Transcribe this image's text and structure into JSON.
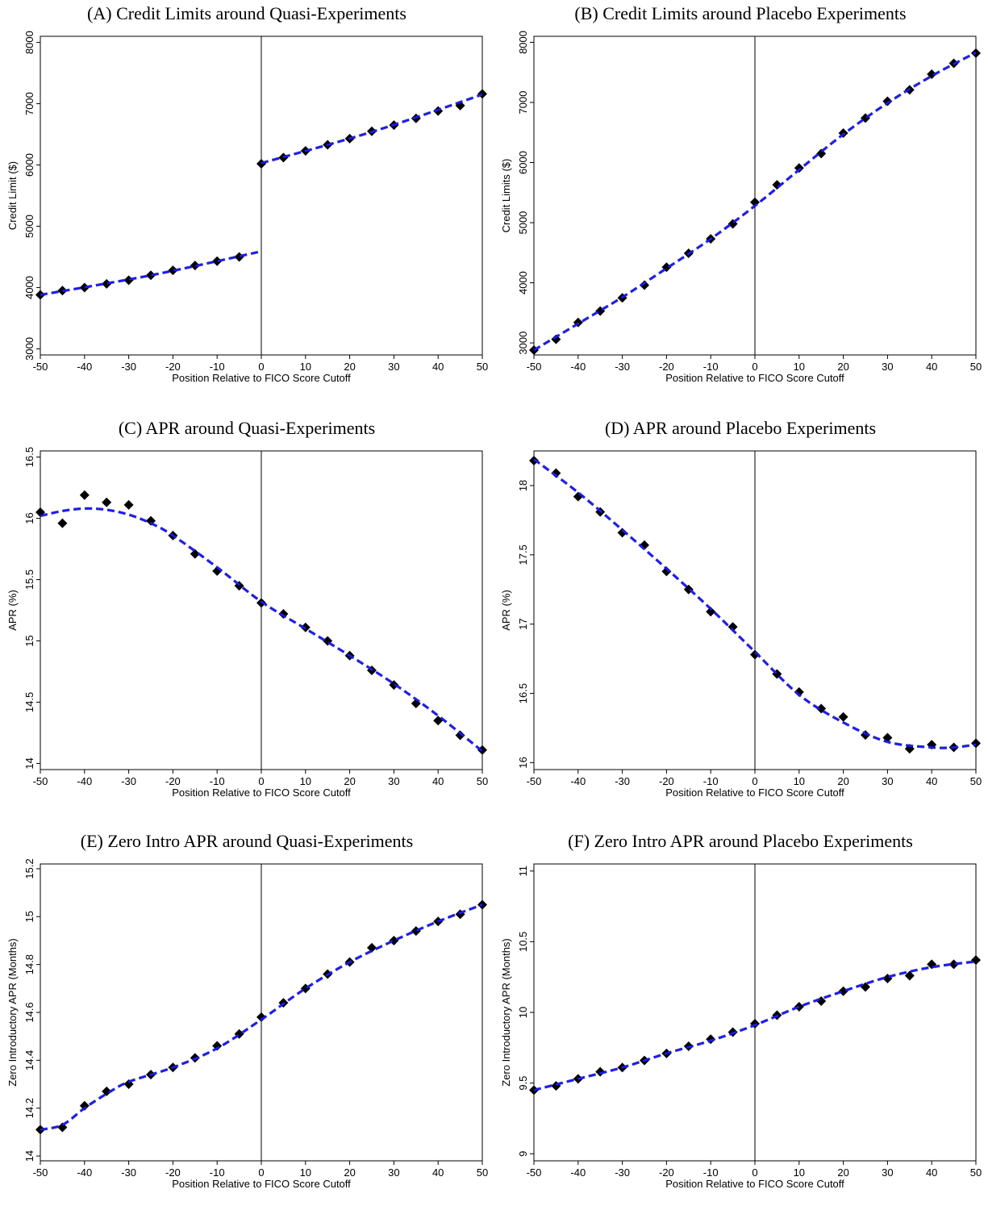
{
  "chart_data": [
    {
      "panel": "A",
      "type": "scatter",
      "title": "(A)  Credit Limits around Quasi-Experiments",
      "xlabel": "Position Relative to FICO Score Cutoff",
      "ylabel": "Credit Limit ($)",
      "xlim": [
        -50,
        50
      ],
      "ylim": [
        2900,
        8100
      ],
      "xticks": [
        -50,
        -40,
        -30,
        -20,
        -10,
        0,
        10,
        20,
        30,
        40,
        50
      ],
      "yticks": [
        3000,
        4000,
        5000,
        6000,
        7000,
        8000
      ],
      "x": [
        -50,
        -45,
        -40,
        -35,
        -30,
        -25,
        -20,
        -15,
        -10,
        -5,
        0,
        5,
        10,
        15,
        20,
        25,
        30,
        35,
        40,
        45,
        50
      ],
      "y": [
        3880,
        3950,
        4000,
        4060,
        4120,
        4200,
        4280,
        4360,
        4430,
        4500,
        6020,
        6120,
        6230,
        6330,
        6430,
        6550,
        6650,
        6760,
        6880,
        6970,
        7160
      ],
      "fit": [
        {
          "x": [
            -50,
            -25,
            0
          ],
          "y": [
            3880,
            4200,
            4590
          ]
        },
        {
          "x": [
            0,
            25,
            50
          ],
          "y": [
            6030,
            6540,
            7150
          ]
        }
      ],
      "cutoff_line": 0
    },
    {
      "panel": "B",
      "type": "scatter",
      "title": "(B)  Credit Limits around Placebo Experiments",
      "xlabel": "Position Relative to FICO Score Cutoff",
      "ylabel": "Credit Limits ($)",
      "xlim": [
        -50,
        50
      ],
      "ylim": [
        2800,
        8100
      ],
      "xticks": [
        -50,
        -40,
        -30,
        -20,
        -10,
        0,
        10,
        20,
        30,
        40,
        50
      ],
      "yticks": [
        3000,
        4000,
        5000,
        6000,
        7000,
        8000
      ],
      "x": [
        -50,
        -45,
        -40,
        -35,
        -30,
        -25,
        -20,
        -15,
        -10,
        -5,
        0,
        5,
        10,
        15,
        20,
        25,
        30,
        35,
        40,
        45,
        50
      ],
      "y": [
        2880,
        3060,
        3340,
        3530,
        3750,
        3960,
        4260,
        4490,
        4730,
        4980,
        5340,
        5630,
        5910,
        6150,
        6490,
        6740,
        7020,
        7210,
        7470,
        7650,
        7820
      ],
      "fit": [
        {
          "x": [
            -50,
            -40,
            -30,
            -20,
            -10,
            0,
            10,
            20,
            30,
            40,
            50
          ],
          "y": [
            2880,
            3320,
            3760,
            4240,
            4730,
            5280,
            5880,
            6470,
            6990,
            7440,
            7830
          ]
        }
      ],
      "cutoff_line": 0
    },
    {
      "panel": "C",
      "type": "scatter",
      "title": "(C)  APR around Quasi-Experiments",
      "xlabel": "Position Relative to FICO Score Cutoff",
      "ylabel": "APR (%)",
      "xlim": [
        -50,
        50
      ],
      "ylim": [
        13.95,
        16.55
      ],
      "xticks": [
        -50,
        -40,
        -30,
        -20,
        -10,
        0,
        10,
        20,
        30,
        40,
        50
      ],
      "yticks": [
        14,
        14.5,
        15,
        15.5,
        16,
        16.5
      ],
      "x": [
        -50,
        -45,
        -40,
        -35,
        -30,
        -25,
        -20,
        -15,
        -10,
        -5,
        0,
        5,
        10,
        15,
        20,
        25,
        30,
        35,
        40,
        45,
        50
      ],
      "y": [
        16.05,
        15.96,
        16.19,
        16.13,
        16.11,
        15.98,
        15.86,
        15.71,
        15.57,
        15.45,
        15.31,
        15.22,
        15.11,
        15.0,
        14.88,
        14.76,
        14.64,
        14.49,
        14.35,
        14.23,
        14.11
      ],
      "fit": [
        {
          "x": [
            -50,
            -45,
            -40,
            -35,
            -30,
            -25,
            -20,
            -10,
            0,
            10,
            20,
            30,
            40,
            50
          ],
          "y": [
            16.02,
            16.06,
            16.08,
            16.07,
            16.03,
            15.96,
            15.86,
            15.6,
            15.32,
            15.1,
            14.88,
            14.65,
            14.39,
            14.1
          ]
        }
      ],
      "cutoff_line": 0
    },
    {
      "panel": "D",
      "type": "scatter",
      "title": "(D)  APR around Placebo Experiments",
      "xlabel": "Position Relative to FICO Score Cutoff",
      "ylabel": "APR (%)",
      "xlim": [
        -50,
        50
      ],
      "ylim": [
        15.95,
        18.25
      ],
      "xticks": [
        -50,
        -40,
        -30,
        -20,
        -10,
        0,
        10,
        20,
        30,
        40,
        50
      ],
      "yticks": [
        16,
        16.5,
        17,
        17.5,
        18
      ],
      "x": [
        -50,
        -45,
        -40,
        -35,
        -30,
        -25,
        -20,
        -15,
        -10,
        -5,
        0,
        5,
        10,
        15,
        20,
        25,
        30,
        35,
        40,
        45,
        50
      ],
      "y": [
        18.18,
        18.09,
        17.92,
        17.81,
        17.66,
        17.57,
        17.38,
        17.25,
        17.09,
        16.98,
        16.78,
        16.64,
        16.51,
        16.39,
        16.33,
        16.2,
        16.18,
        16.1,
        16.13,
        16.11,
        16.14
      ],
      "fit": [
        {
          "x": [
            -50,
            -40,
            -30,
            -20,
            -10,
            0,
            10,
            20,
            30,
            40,
            45,
            50
          ],
          "y": [
            18.19,
            17.95,
            17.68,
            17.4,
            17.11,
            16.8,
            16.49,
            16.29,
            16.15,
            16.11,
            16.11,
            16.13
          ]
        }
      ],
      "cutoff_line": 0
    },
    {
      "panel": "E",
      "type": "scatter",
      "title": "(E)  Zero Intro APR around Quasi-Experiments",
      "xlabel": "Position Relative to FICO Score Cutoff",
      "ylabel": "Zero Introductory APR (Months)",
      "xlim": [
        -50,
        50
      ],
      "ylim": [
        13.98,
        15.22
      ],
      "xticks": [
        -50,
        -40,
        -30,
        -20,
        -10,
        0,
        10,
        20,
        30,
        40,
        50
      ],
      "yticks": [
        14,
        14.2,
        14.4,
        14.6,
        14.8,
        15,
        15.2
      ],
      "x": [
        -50,
        -45,
        -40,
        -35,
        -30,
        -25,
        -20,
        -15,
        -10,
        -5,
        0,
        5,
        10,
        15,
        20,
        25,
        30,
        35,
        40,
        45,
        50
      ],
      "y": [
        14.11,
        14.12,
        14.21,
        14.27,
        14.3,
        14.34,
        14.37,
        14.41,
        14.46,
        14.51,
        14.58,
        14.64,
        14.7,
        14.76,
        14.81,
        14.87,
        14.9,
        14.94,
        14.98,
        15.01,
        15.05
      ],
      "fit": [
        {
          "x": [
            -50,
            -45,
            -40,
            -35,
            -30,
            -20,
            -10,
            0,
            10,
            20,
            30,
            40,
            50
          ],
          "y": [
            14.11,
            14.13,
            14.2,
            14.26,
            14.31,
            14.37,
            14.45,
            14.57,
            14.7,
            14.81,
            14.9,
            14.98,
            15.05
          ]
        }
      ],
      "cutoff_line": 0
    },
    {
      "panel": "F",
      "type": "scatter",
      "title": "(F)  Zero Intro APR around Placebo Experiments",
      "xlabel": "Position Relative to FICO Score Cutoff",
      "ylabel": "Zero Introductory APR (Months)",
      "xlim": [
        -50,
        50
      ],
      "ylim": [
        8.95,
        11.05
      ],
      "xticks": [
        -50,
        -40,
        -30,
        -20,
        -10,
        0,
        10,
        20,
        30,
        40,
        50
      ],
      "yticks": [
        9,
        9.5,
        10,
        10.5,
        11
      ],
      "x": [
        -50,
        -45,
        -40,
        -35,
        -30,
        -25,
        -20,
        -15,
        -10,
        -5,
        0,
        5,
        10,
        15,
        20,
        25,
        30,
        35,
        40,
        45,
        50
      ],
      "y": [
        9.45,
        9.48,
        9.53,
        9.58,
        9.61,
        9.66,
        9.71,
        9.76,
        9.81,
        9.86,
        9.92,
        9.98,
        10.04,
        10.08,
        10.15,
        10.18,
        10.24,
        10.26,
        10.34,
        10.34,
        10.37
      ],
      "fit": [
        {
          "x": [
            -50,
            -40,
            -30,
            -20,
            -10,
            0,
            10,
            20,
            30,
            40,
            50
          ],
          "y": [
            9.45,
            9.53,
            9.61,
            9.71,
            9.8,
            9.91,
            10.04,
            10.15,
            10.25,
            10.32,
            10.36
          ]
        }
      ],
      "cutoff_line": 0
    }
  ],
  "style": {
    "marker_color": "#000000",
    "fit_color": "#1a1aff",
    "fit_shadow_color": "#000000",
    "axis_color": "#000000"
  }
}
